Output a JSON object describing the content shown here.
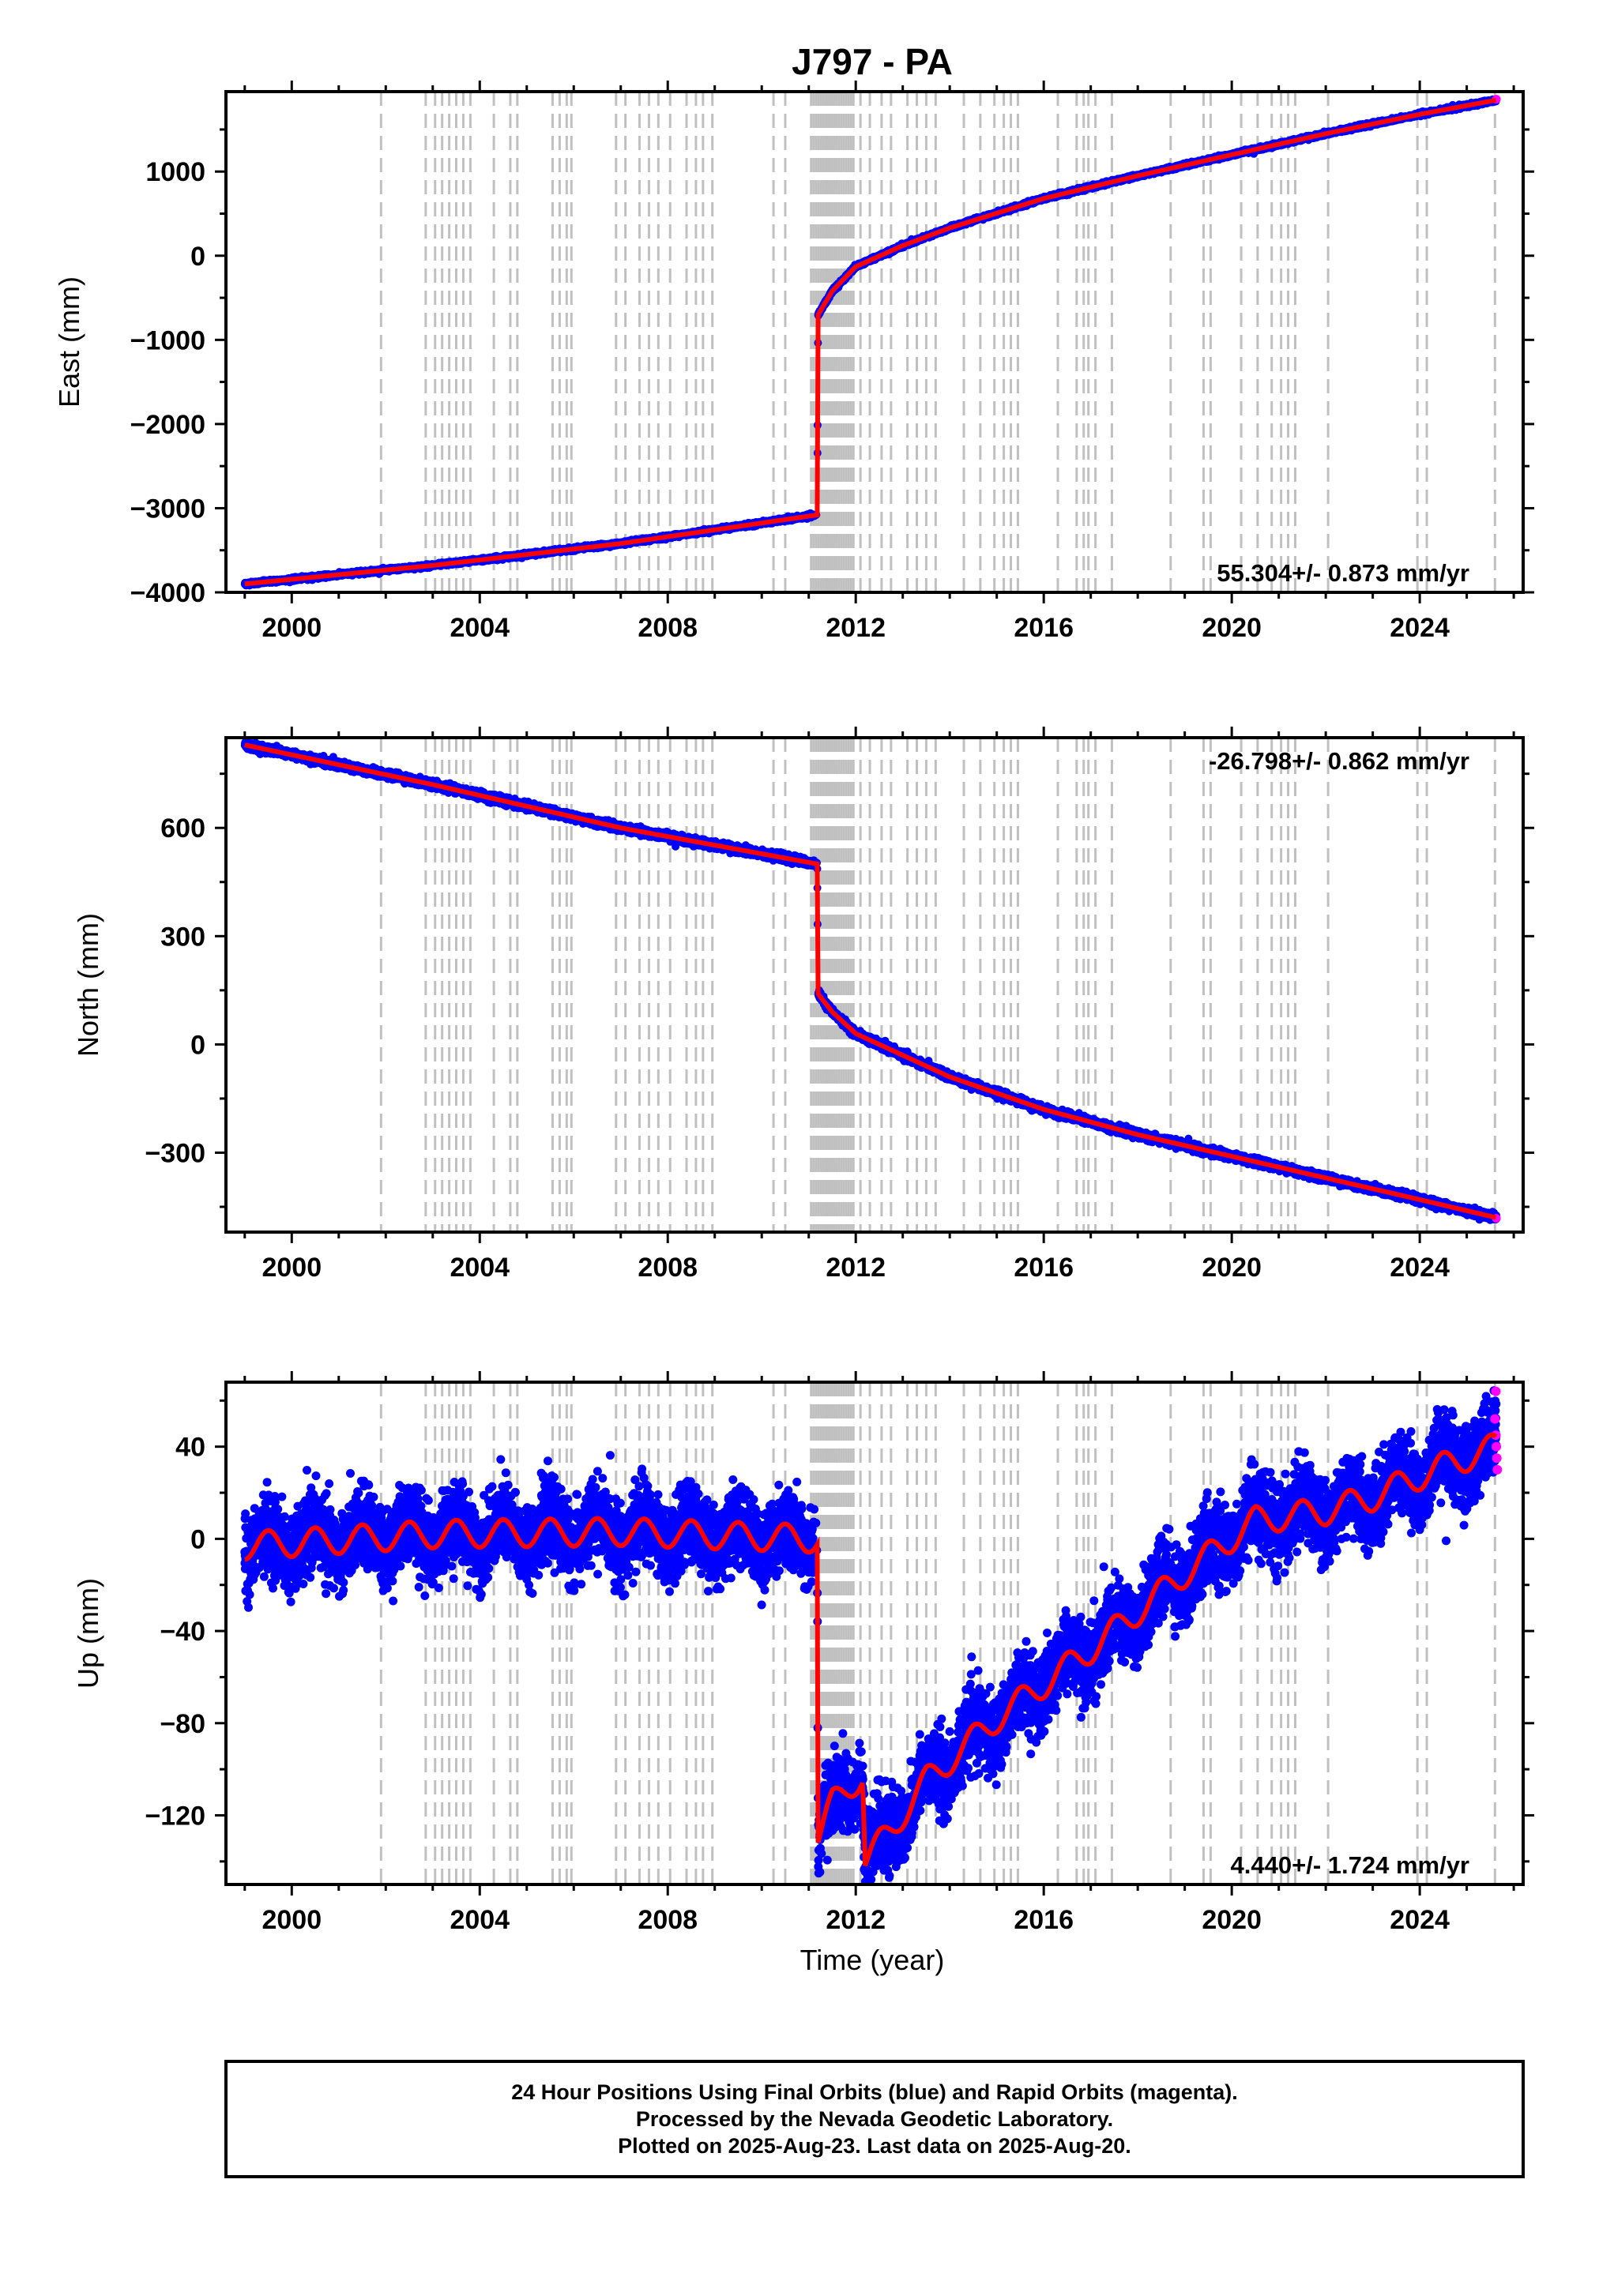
{
  "title": "J797 - PA",
  "xlabel": "Time (year)",
  "colors": {
    "final_orbits": "#0000ff",
    "rapid_orbits": "#ff00ff",
    "model": "#ff0000",
    "event_lines": "#c0c0c0"
  },
  "footer": {
    "line1": "24 Hour Positions Using Final Orbits (blue) and Rapid Orbits (magenta).",
    "line2": "Processed by the Nevada Geodetic Laboratory.",
    "line3": "Plotted on 2025-Aug-23. Last data on 2025-Aug-20."
  },
  "chart_data": [
    {
      "type": "scatter",
      "name": "east",
      "ylabel": "East (mm)",
      "xlim": [
        1998.6,
        2026.2
      ],
      "ylim": [
        -4000,
        1950
      ],
      "xticks": [
        2000,
        2004,
        2008,
        2012,
        2016,
        2020,
        2024
      ],
      "yticks": [
        -4000,
        -3000,
        -2000,
        -1000,
        0,
        1000
      ],
      "velocity_label": "55.304+/- 0.873 mm/yr",
      "velocity_label_position": "bottom-right",
      "noise_mm": 10,
      "trend": [
        [
          1999.0,
          -3900
        ],
        [
          2003.0,
          -3680
        ],
        [
          2007.0,
          -3420
        ],
        [
          2011.18,
          -3080
        ],
        [
          2011.2,
          -700
        ],
        [
          2011.5,
          -420
        ],
        [
          2012.0,
          -130
        ],
        [
          2013.0,
          120
        ],
        [
          2014.0,
          330
        ],
        [
          2016.0,
          680
        ],
        [
          2018.0,
          950
        ],
        [
          2020.0,
          1200
        ],
        [
          2022.0,
          1450
        ],
        [
          2024.0,
          1680
        ],
        [
          2025.63,
          1850
        ]
      ],
      "rapid_points": [
        [
          2025.63,
          1860
        ]
      ]
    },
    {
      "type": "scatter",
      "name": "north",
      "ylabel": "North (mm)",
      "xlim": [
        1998.6,
        2026.2
      ],
      "ylim": [
        -520,
        850
      ],
      "xticks": [
        2000,
        2004,
        2008,
        2012,
        2016,
        2020,
        2024
      ],
      "yticks": [
        -300,
        0,
        300,
        600
      ],
      "velocity_label": "-26.798+/- 0.862 mm/yr",
      "velocity_label_position": "top-right",
      "noise_mm": 5,
      "trend": [
        [
          1999.0,
          830
        ],
        [
          2003.0,
          720
        ],
        [
          2007.0,
          600
        ],
        [
          2011.18,
          500
        ],
        [
          2011.2,
          140
        ],
        [
          2011.5,
          90
        ],
        [
          2012.0,
          30
        ],
        [
          2013.0,
          -30
        ],
        [
          2014.0,
          -90
        ],
        [
          2016.0,
          -180
        ],
        [
          2018.0,
          -250
        ],
        [
          2020.0,
          -310
        ],
        [
          2022.0,
          -370
        ],
        [
          2024.0,
          -430
        ],
        [
          2025.63,
          -480
        ]
      ],
      "rapid_points": [
        [
          2025.63,
          -482
        ]
      ]
    },
    {
      "type": "scatter",
      "name": "up",
      "ylabel": "Up (mm)",
      "xlim": [
        1998.6,
        2026.2
      ],
      "ylim": [
        -150,
        68
      ],
      "xticks": [
        2000,
        2004,
        2008,
        2012,
        2016,
        2020,
        2024
      ],
      "yticks": [
        -120,
        -80,
        -40,
        0,
        40
      ],
      "velocity_label": "4.440+/- 1.724 mm/yr",
      "velocity_label_position": "bottom-right",
      "noise_mm": 8,
      "seasonal_amplitude_mm": 6,
      "trend": [
        [
          1999.0,
          -3
        ],
        [
          2003.0,
          2
        ],
        [
          2007.0,
          3
        ],
        [
          2011.18,
          0
        ],
        [
          2011.2,
          -130
        ],
        [
          2011.5,
          -115
        ],
        [
          2012.15,
          -102
        ],
        [
          2012.2,
          -140
        ],
        [
          2012.8,
          -125
        ],
        [
          2013.5,
          -105
        ],
        [
          2015.0,
          -78
        ],
        [
          2017.0,
          -48
        ],
        [
          2019.0,
          -15
        ],
        [
          2020.5,
          8
        ],
        [
          2022.0,
          12
        ],
        [
          2023.0,
          18
        ],
        [
          2024.3,
          30
        ],
        [
          2025.63,
          40
        ]
      ],
      "rapid_points": [
        [
          2025.6,
          52
        ],
        [
          2025.62,
          45
        ],
        [
          2025.63,
          40
        ],
        [
          2025.64,
          35
        ],
        [
          2025.65,
          30
        ],
        [
          2025.62,
          64
        ]
      ]
    }
  ],
  "event_lines": [
    2001.9,
    2002.85,
    2003.05,
    2003.2,
    2003.35,
    2003.5,
    2003.65,
    2003.8,
    2004.3,
    2004.65,
    2004.8,
    2005.55,
    2005.7,
    2005.85,
    2005.95,
    2006.9,
    2007.1,
    2007.4,
    2007.6,
    2007.8,
    2008.05,
    2008.4,
    2008.6,
    2008.75,
    2008.95,
    2010.25,
    2010.5,
    2011.05,
    2011.1,
    2011.15,
    2011.2,
    2011.25,
    2011.3,
    2011.35,
    2011.4,
    2011.45,
    2011.5,
    2011.55,
    2011.6,
    2011.65,
    2011.7,
    2011.75,
    2011.8,
    2011.85,
    2011.9,
    2011.95,
    2012.1,
    2012.3,
    2012.55,
    2012.75,
    2013.1,
    2013.3,
    2013.5,
    2013.7,
    2014.3,
    2014.65,
    2014.95,
    2015.15,
    2015.3,
    2015.45,
    2016.3,
    2016.7,
    2016.85,
    2016.95,
    2017.1,
    2017.45,
    2018.7,
    2019.4,
    2019.55,
    2020.2,
    2020.55,
    2020.85,
    2021.05,
    2021.2,
    2021.35,
    2022.05,
    2023.95,
    2024.15,
    2025.6
  ]
}
